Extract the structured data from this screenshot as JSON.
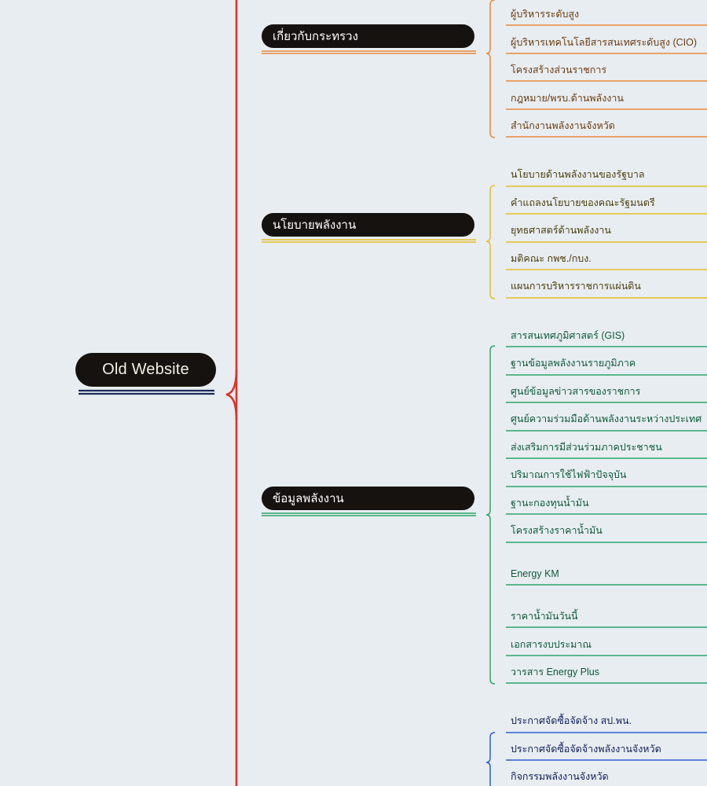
{
  "root": {
    "label": "Old Website"
  },
  "colors": {
    "root_line": "#d8332c",
    "root_underline": "#1d2a5c",
    "branch_0": "#e88a3c",
    "branch_1": "#e3bf2b",
    "branch_2": "#2da56a",
    "branch_3": "#2f5fd1",
    "leaf_text_0": "#6a3c10",
    "leaf_text_1": "#4a3e0c",
    "leaf_text_2": "#0e5a38",
    "leaf_text_3": "#0f1f5a"
  },
  "branches": [
    {
      "label": "เกี่ยวกับกระทรวง",
      "children": [
        "ผู้บริหารระดับสูง",
        "ผู้บริหารเทคโนโลยีสารสนเทศระดับสูง (CIO)",
        "โครงสร้างส่วนราชการ",
        "กฎหมาย/พรบ.ด้านพลังงาน",
        "สำนักงานพลังงานจังหวัด"
      ]
    },
    {
      "label": "นโยบายพลังงาน",
      "children": [
        "นโยบายด้านพลังงานของรัฐบาล",
        "คำแถลงนโยบายของคณะรัฐมนตรี",
        "ยุทธศาสตร์ด้านพลังงาน",
        "มติคณะ กพช./กบง.",
        "แผนการบริหารราชการแผ่นดิน"
      ]
    },
    {
      "label": "ข้อมูลพลังงาน",
      "children": [
        "สารสนเทศภูมิศาสตร์ (GIS)",
        "ฐานข้อมูลพลังงานรายภูมิภาค",
        "ศูนย์ข้อมูลข่าวสารของราชการ",
        "ศูนย์ความร่วมมือด้านพลังงานระหว่างประเทศ",
        "ส่งเสริมการมีส่วนร่วมภาคประชาชน",
        "ปริมาณการใช้ไฟฟ้าปัจจุบัน",
        "ฐานะกองทุนน้ำมัน",
        "โครงสร้างราคาน้ำมัน",
        "Energy KM",
        "ราคาน้ำมันวันนี้",
        "เอกสารงบประมาณ",
        "วารสาร Energy Plus"
      ]
    },
    {
      "label": "",
      "children": [
        "ประกาศจัดซื้อจัดจ้าง สป.พน.",
        "ประกาศจัดซื้อจัดจ้างพลังงานจังหวัด",
        "กิจกรรมพลังงานจังหวัด"
      ]
    }
  ]
}
